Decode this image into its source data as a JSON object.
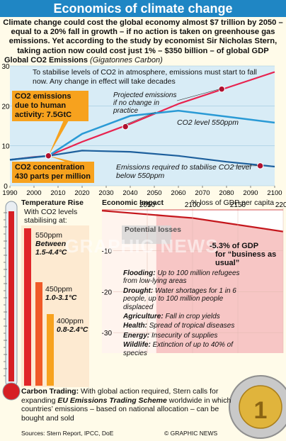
{
  "title": "Economics of climate change",
  "intro": "Climate change could cost the global economy almost $7 trillion by 2050 – equal to a 20% fall in growth – if no action is taken on greenhouse gas emissions. Yet according to the study by economist Sir Nicholas Stern, taking action now could cost just 1% – $350 billion – of global GDP",
  "emissions_chart": {
    "title": "Global CO2 Emissions",
    "subtitle": "(Gigatonnes Carbon)",
    "note": "To stabilise levels of CO2 in atmosphere, emissions must start to fall now. Any change in effect will take decades",
    "current_emissions": "CO2 emissions due to human activity: 7.5GtC",
    "current_concentration": "CO2 concentration 430 parts per million",
    "projected_label": "Projected emissions if no change in practice",
    "level_label": "CO2 level 550ppm",
    "stabilise_label": "Emissions required to stabilise CO2 level below 550ppm"
  },
  "chart_data": [
    {
      "type": "line",
      "title": "Global CO2 Emissions",
      "subtitle": "(Gigatonnes Carbon)",
      "xlim": [
        1990,
        2100
      ],
      "ylim": [
        0,
        30
      ],
      "x_ticks": [
        "1990",
        "2000",
        "2010",
        "2020",
        "2030",
        "2040",
        "2050",
        "2060",
        "2070",
        "2080",
        "2090",
        "2100"
      ],
      "y_ticks": [
        "0",
        "10",
        "20",
        "30"
      ],
      "series": [
        {
          "name": "Projected emissions if no change in practice",
          "x": [
            1990,
            2000,
            2006,
            2020,
            2040,
            2060,
            2080,
            2100
          ],
          "y": [
            6.5,
            7.2,
            7.5,
            11,
            15.5,
            20.5,
            24.5,
            28.5
          ]
        },
        {
          "name": "CO2 level 550ppm",
          "x": [
            1990,
            2006,
            2020,
            2040,
            2060,
            2080,
            2100
          ],
          "y": [
            6.5,
            7.5,
            13,
            17.5,
            18.8,
            17.3,
            15.8
          ]
        },
        {
          "name": "Emissions required to stabilise CO2 level below 550ppm",
          "x": [
            1990,
            2006,
            2020,
            2040,
            2060,
            2080,
            2100
          ],
          "y": [
            6.5,
            7.5,
            8.8,
            8.5,
            7.5,
            6,
            4.8
          ]
        }
      ],
      "markers": [
        {
          "x": 2006,
          "y": 7.5
        },
        {
          "x": 2038,
          "y": 14.8
        },
        {
          "x": 2078,
          "y": 24.2
        },
        {
          "x": 2094,
          "y": 5
        }
      ]
    },
    {
      "type": "area",
      "title": "Economic Impact",
      "subtitle": "% loss of GDP per capita",
      "xlim": [
        2000,
        2200
      ],
      "ylim": [
        -35,
        0
      ],
      "x_ticks": [
        "2050",
        "2100",
        "2150",
        "2200"
      ],
      "y_ticks": [
        "-10",
        "-20",
        "-30"
      ],
      "series": [
        {
          "name": "business as usual",
          "x": [
            2000,
            2100,
            2200
          ],
          "y": [
            -0.2,
            -2,
            -5.3
          ]
        }
      ]
    }
  ],
  "temperature": {
    "title": "Temperature Rise",
    "lead": "With CO2 levels stabilising at:",
    "levels": [
      {
        "ppm": "550ppm",
        "range": "Between 1.5-4.4°C"
      },
      {
        "ppm": "450ppm",
        "range": "1.0-3.1°C"
      },
      {
        "ppm": "400ppm",
        "range": "0.8-2.4°C"
      }
    ]
  },
  "economic": {
    "title": "Economic Impact",
    "unit": "% loss of GDP per capita",
    "potential_losses": "Potential losses",
    "bau_value": "-5.3% of GDP",
    "bau_label": "for “business as usual”",
    "impacts": [
      {
        "key": "Flooding:",
        "text": "Up to 100 million refugees from low-lying areas"
      },
      {
        "key": "Drought:",
        "text": "Water shortages for 1 in 6 people, up to 100 million people displaced"
      },
      {
        "key": "Agriculture:",
        "text": "Fall in crop yields"
      },
      {
        "key": "Health:",
        "text": "Spread of tropical diseases"
      },
      {
        "key": "Energy:",
        "text": "Insecurity of supplies"
      },
      {
        "key": "Wildlife:",
        "text": "Extinction of up to 40% of species"
      }
    ]
  },
  "carbon": {
    "key": "Carbon Trading:",
    "text1": "With global action required, Stern calls for expanding",
    "scheme": "EU Emissions Trading Scheme",
    "text2": "worldwide in which countries’ emissions – based on national allocation – can be bought and sold"
  },
  "watermark": "GRAPHIC NEWS",
  "footer": {
    "sources": "Sources: Stern Report, IPCC, DoE",
    "credit": "© GRAPHIC NEWS"
  },
  "colors": {
    "title_bar": "#1f86c4",
    "chart_bg": "#d8ecf6",
    "projected": "#e8234f",
    "level": "#2a9ad5",
    "stabilise": "#1d5f9c",
    "orange": "#f7a21e",
    "loss": "#f4b7b7"
  }
}
